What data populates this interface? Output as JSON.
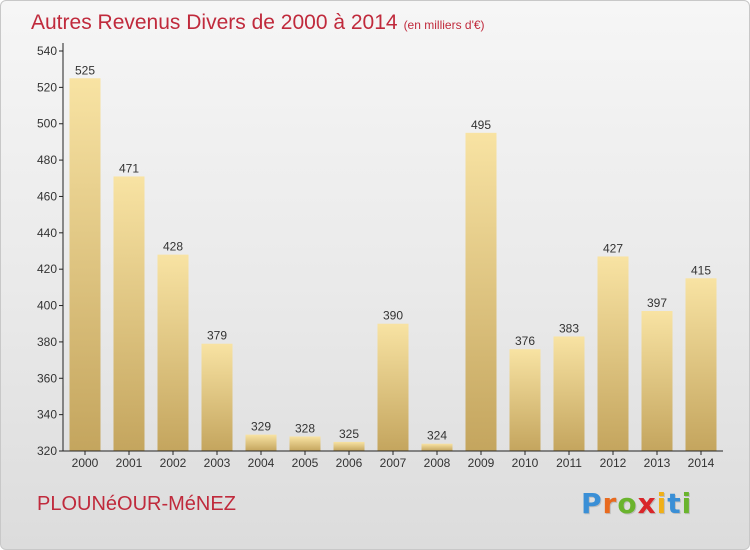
{
  "chart_data": {
    "type": "bar",
    "title": "Autres Revenus Divers de 2000 à 2014",
    "subtitle": "(en milliers d'€)",
    "categories": [
      "2000",
      "2001",
      "2002",
      "2003",
      "2004",
      "2005",
      "2006",
      "2007",
      "2008",
      "2009",
      "2010",
      "2011",
      "2012",
      "2013",
      "2014"
    ],
    "values": [
      525,
      471,
      428,
      379,
      329,
      328,
      325,
      390,
      324,
      495,
      376,
      383,
      427,
      397,
      415
    ],
    "ylim": [
      320,
      540
    ],
    "yticks": [
      320,
      340,
      360,
      380,
      400,
      420,
      440,
      460,
      480,
      500,
      520,
      540
    ],
    "xlabel": "",
    "ylabel": "",
    "grid": false,
    "bar_color": "#e8cc82",
    "bar_color_light": "#f8e3a3",
    "bar_color_dark": "#c4a55e"
  },
  "location": "PLOUNéOUR-MéNEZ",
  "brand": {
    "text": "Proxiti",
    "letter_colors": [
      "#3a8fd6",
      "#e86a1e",
      "#6ab42d",
      "#d9262a",
      "#f0b018",
      "#3a8fd6",
      "#6ab42d"
    ]
  },
  "colors": {
    "title": "#c02a3c",
    "axis": "#222222"
  }
}
